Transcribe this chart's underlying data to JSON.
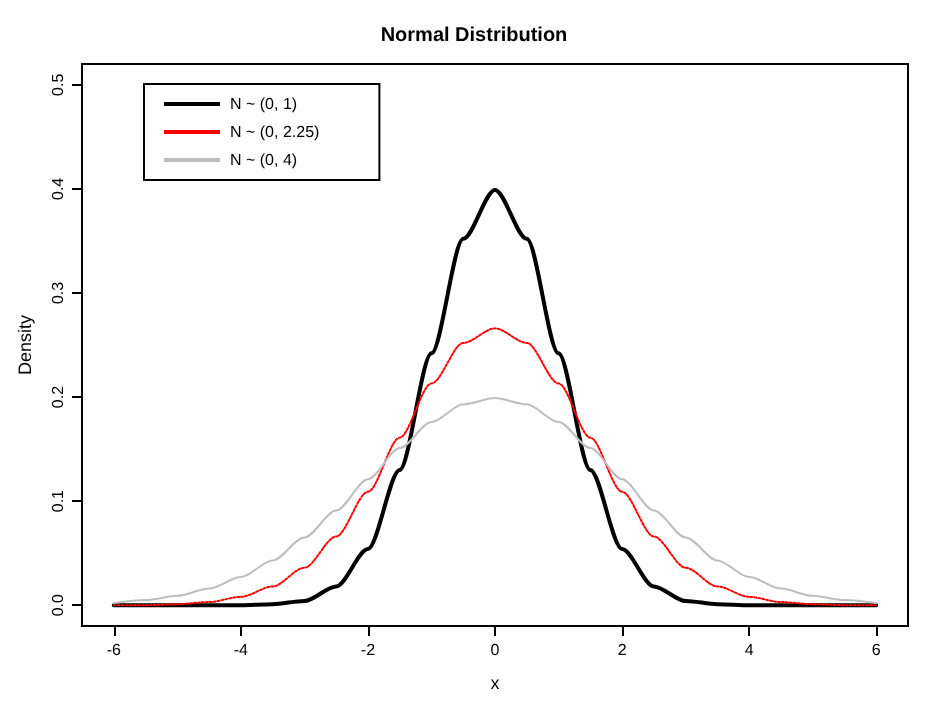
{
  "chart_data": {
    "type": "line",
    "title": "Normal Distribution",
    "xlabel": "x",
    "ylabel": "Density",
    "xlim": [
      -6.5,
      6.5
    ],
    "xticks": [
      -6,
      -4,
      -2,
      0,
      2,
      4,
      6
    ],
    "ylim": [
      -0.02,
      0.52
    ],
    "yticks": [
      {
        "value": 0,
        "label": "0.0"
      },
      {
        "value": 0.1,
        "label": "0.1"
      },
      {
        "value": 0.2,
        "label": "0.2"
      },
      {
        "value": 0.3,
        "label": "0.3"
      },
      {
        "value": 0.4,
        "label": "0.4"
      },
      {
        "value": 0.5,
        "label": "0.5"
      }
    ],
    "grid": false,
    "legend": "top left",
    "marker": "none",
    "series": [
      {
        "name": "N ~ (0, 1)",
        "color": "#000000",
        "line_style": "solid",
        "x": [
          -6,
          -5.5,
          -5,
          -4.5,
          -4,
          -3.5,
          -3,
          -2.5,
          -2,
          -1.5,
          -1,
          -0.5,
          0,
          0.5,
          1,
          1.5,
          2,
          2.5,
          3,
          3.5,
          4,
          4.5,
          5,
          5.5,
          6
        ],
        "values": [
          0,
          0,
          0,
          0,
          0,
          0.001,
          0.004,
          0.018,
          0.054,
          0.13,
          0.242,
          0.352,
          0.399,
          0.352,
          0.242,
          0.13,
          0.054,
          0.018,
          0.004,
          0.001,
          0,
          0,
          0,
          0,
          0
        ]
      },
      {
        "name": "N ~ (0, 2.25)",
        "color": "#ff0000",
        "line_style": "dotted",
        "x": [
          -6,
          -5.5,
          -5,
          -4.5,
          -4,
          -3.5,
          -3,
          -2.5,
          -2,
          -1.5,
          -1,
          -0.5,
          0,
          0.5,
          1,
          1.5,
          2,
          2.5,
          3,
          3.5,
          4,
          4.5,
          5,
          5.5,
          6
        ],
        "values": [
          0,
          0,
          0.001,
          0.003,
          0.008,
          0.018,
          0.036,
          0.066,
          0.109,
          0.161,
          0.213,
          0.252,
          0.266,
          0.252,
          0.213,
          0.161,
          0.109,
          0.066,
          0.036,
          0.018,
          0.008,
          0.003,
          0.001,
          0,
          0
        ]
      },
      {
        "name": "N ~ (0, 4)",
        "color": "#bebebe",
        "line_style": "solid",
        "x": [
          -6,
          -5.5,
          -5,
          -4.5,
          -4,
          -3.5,
          -3,
          -2.5,
          -2,
          -1.5,
          -1,
          -0.5,
          0,
          0.5,
          1,
          1.5,
          2,
          2.5,
          3,
          3.5,
          4,
          4.5,
          5,
          5.5,
          6
        ],
        "values": [
          0.002,
          0.005,
          0.009,
          0.016,
          0.027,
          0.043,
          0.065,
          0.091,
          0.121,
          0.151,
          0.176,
          0.193,
          0.199,
          0.193,
          0.176,
          0.151,
          0.121,
          0.091,
          0.065,
          0.043,
          0.027,
          0.016,
          0.009,
          0.005,
          0.002
        ]
      }
    ]
  }
}
